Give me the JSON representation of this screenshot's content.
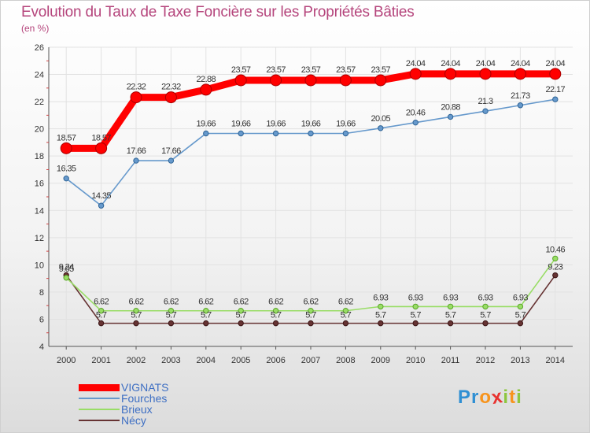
{
  "title": "Evolution du Taux de Taxe Foncière sur les Propriétés Bâties",
  "unit": "(en %)",
  "logo": {
    "text": "Proxiti",
    "colors": [
      "#2f8fd3",
      "#2f8fd3",
      "#f7941d",
      "#e8322f",
      "#8dc63f",
      "#f7941d",
      "#8dc63f"
    ]
  },
  "legend": [
    {
      "name": "VIGNATS",
      "color": "#ff0000"
    },
    {
      "name": "Fourches",
      "color": "#6699cc"
    },
    {
      "name": "Brieux",
      "color": "#99dd66"
    },
    {
      "name": "Nécy",
      "color": "#663333"
    }
  ],
  "chart_data": {
    "type": "line",
    "categories": [
      "2000",
      "2001",
      "2002",
      "2003",
      "2004",
      "2005",
      "2006",
      "2007",
      "2008",
      "2009",
      "2010",
      "2011",
      "2012",
      "2013",
      "2014"
    ],
    "ylim": [
      4,
      26
    ],
    "yticks": [
      "4",
      "6",
      "8",
      "10",
      "12",
      "14",
      "16",
      "18",
      "20",
      "22",
      "24",
      "26"
    ],
    "grid": true,
    "series": [
      {
        "name": "VIGNATS",
        "color": "#ff0000",
        "values": [
          18.57,
          18.57,
          22.32,
          22.32,
          22.88,
          23.57,
          23.57,
          23.57,
          23.57,
          23.57,
          24.04,
          24.04,
          24.04,
          24.04,
          24.04
        ],
        "labels": [
          "18.57",
          "18.57",
          "22.32",
          "22.32",
          "22.88",
          "23.57",
          "23.57",
          "23.57",
          "23.57",
          "23.57",
          "24.04",
          "24.04",
          "24.04",
          "24.04",
          "24.04"
        ]
      },
      {
        "name": "Fourches",
        "color": "#6699cc",
        "values": [
          16.35,
          14.35,
          17.66,
          17.66,
          19.66,
          19.66,
          19.66,
          19.66,
          19.66,
          20.05,
          20.46,
          20.88,
          21.3,
          21.73,
          22.17
        ],
        "labels": [
          "16.35",
          "14.35",
          "17.66",
          "17.66",
          "19.66",
          "19.66",
          "19.66",
          "19.66",
          "19.66",
          "20.05",
          "20.46",
          "20.88",
          "21.3",
          "21.73",
          "22.17"
        ]
      },
      {
        "name": "Brieux",
        "color": "#99dd66",
        "values": [
          9.05,
          6.62,
          6.62,
          6.62,
          6.62,
          6.62,
          6.62,
          6.62,
          6.62,
          6.93,
          6.93,
          6.93,
          6.93,
          6.93,
          10.46
        ],
        "labels": [
          "9.05",
          "6.62",
          "6.62",
          "6.62",
          "6.62",
          "6.62",
          "6.62",
          "6.62",
          "6.62",
          "6.93",
          "6.93",
          "6.93",
          "6.93",
          "6.93",
          "10.46"
        ]
      },
      {
        "name": "Nécy",
        "color": "#663333",
        "values": [
          9.24,
          5.7,
          5.7,
          5.7,
          5.7,
          5.7,
          5.7,
          5.7,
          5.7,
          5.7,
          5.7,
          5.7,
          5.7,
          5.7,
          9.23
        ],
        "labels": [
          "9.24",
          "5.7",
          "5.7",
          "5.7",
          "5.7",
          "5.7",
          "5.7",
          "5.7",
          "5.7",
          "5.7",
          "5.7",
          "5.7",
          "5.7",
          "5.7",
          "9.23"
        ]
      }
    ]
  }
}
